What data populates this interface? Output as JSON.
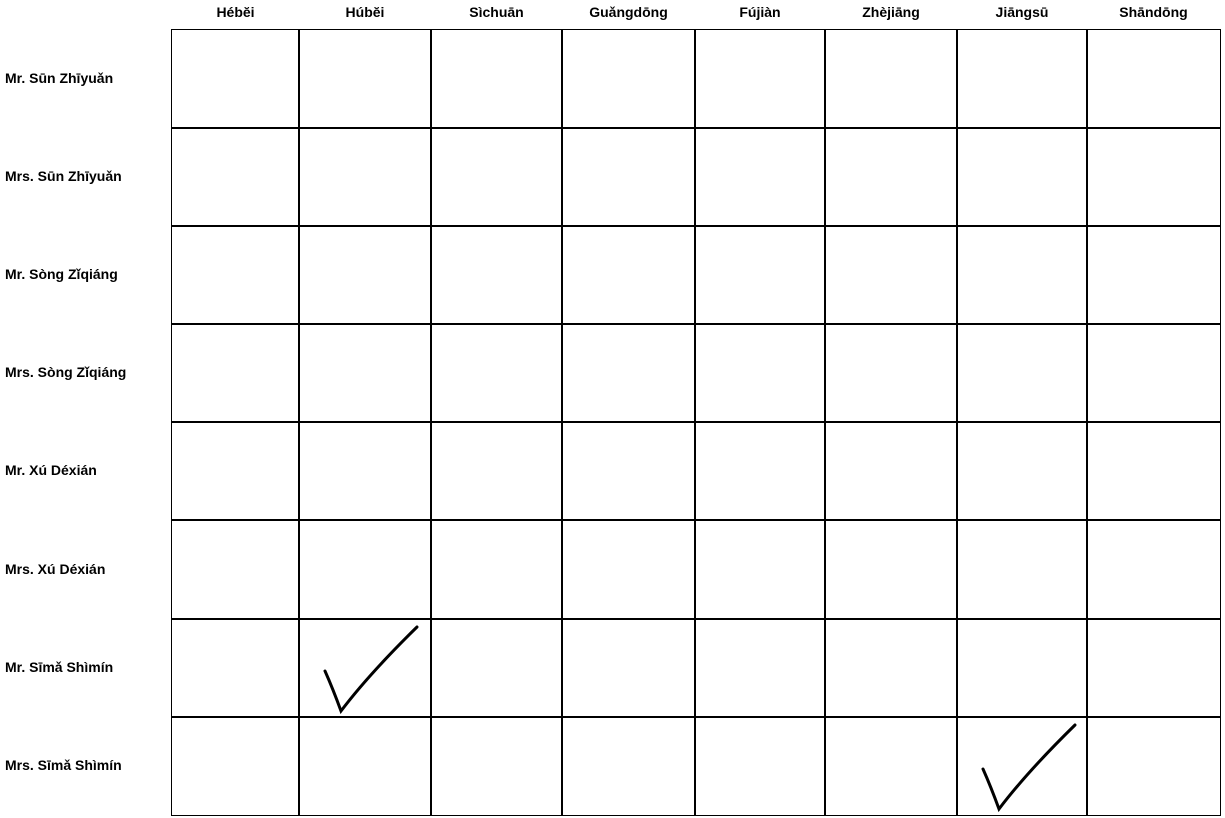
{
  "columns": [
    "Hébĕi",
    "Húbĕi",
    "Sìchuān",
    "Guǎngdōng",
    "Fújiàn",
    "Zhèjiāng",
    "Jiāngsū",
    "Shāndōng"
  ],
  "rows": [
    "Mr. Sūn Zhīyuǎn",
    "Mrs. Sūn Zhīyuǎn",
    "Mr. Sòng Zǐqiáng",
    "Mrs. Sòng Zǐqiáng",
    "Mr. Xú Déxián",
    "Mrs. Xú Déxián",
    "Mr. Sīmǎ Shìmín",
    "Mrs. Sīmǎ Shìmín"
  ],
  "checked": [
    {
      "row": "Mr. Sīmǎ Shìmín",
      "column": "Húbĕi"
    },
    {
      "row": "Mrs. Sīmǎ Shìmín",
      "column": "Jiāngsū"
    }
  ]
}
